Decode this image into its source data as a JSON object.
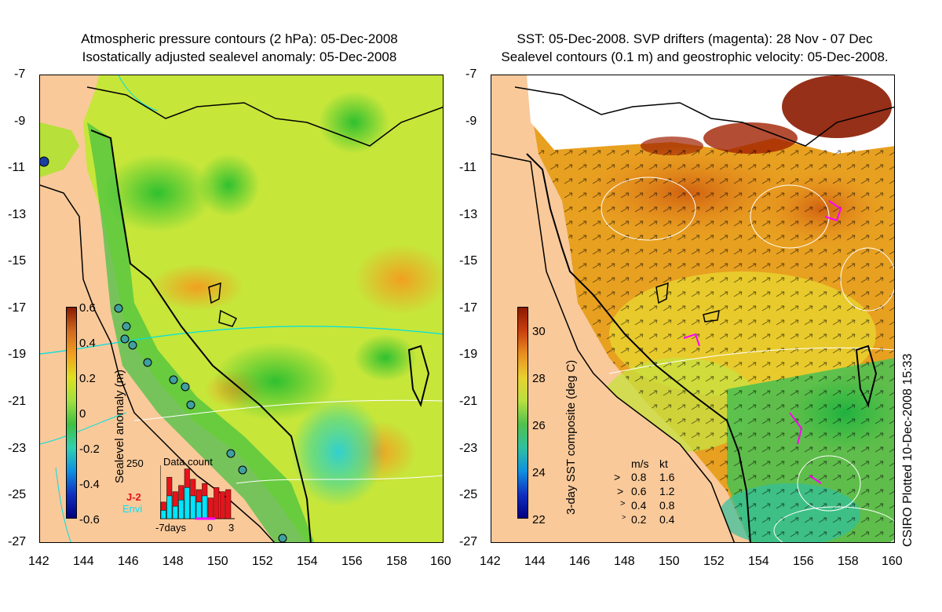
{
  "left_panel": {
    "title_line1": "Atmospheric pressure contours (2 hPa): 05-Dec-2008",
    "title_line2": "Isostatically adjusted sealevel anomaly: 05-Dec-2008",
    "y_ticks": [
      "-7",
      "-9",
      "-11",
      "-13",
      "-15",
      "-17",
      "-19",
      "-21",
      "-23",
      "-25",
      "-27"
    ],
    "x_ticks": [
      "142",
      "144",
      "146",
      "148",
      "150",
      "152",
      "154",
      "156",
      "158",
      "160"
    ],
    "colorbar": {
      "label": "Sealevel anomaly (m)",
      "ticks": [
        "0.6",
        "0.4",
        "0.2",
        "0",
        "-0.2",
        "-0.4",
        "-0.6"
      ],
      "range": [
        -0.6,
        0.6
      ]
    },
    "data_count_inset": {
      "title": "Data count",
      "max_label": "250",
      "x_labels": [
        "-7days",
        "0",
        "3"
      ],
      "series": [
        {
          "name": "J-2",
          "color": "#e8121a",
          "values": [
            80,
            200,
            130,
            160,
            240,
            190,
            140,
            170,
            100,
            150,
            130,
            140
          ]
        },
        {
          "name": "Envi",
          "color": "#00e5ff",
          "values": [
            40,
            110,
            60,
            90,
            150,
            110,
            80,
            110,
            0,
            0,
            0,
            0
          ]
        }
      ]
    }
  },
  "right_panel": {
    "title_line1": "SST: 05-Dec-2008. SVP drifters (magenta): 28 Nov - 07 Dec",
    "title_line2": "Sealevel contours (0.1 m) and geostrophic velocity: 05-Dec-2008.",
    "y_ticks": [
      "-7",
      "-9",
      "-11",
      "-13",
      "-15",
      "-17",
      "-19",
      "-21",
      "-23",
      "-25",
      "-27"
    ],
    "x_ticks": [
      "142",
      "144",
      "146",
      "148",
      "150",
      "152",
      "154",
      "156",
      "158",
      "160"
    ],
    "colorbar": {
      "label": "3-day SST composite (deg C)",
      "ticks": [
        "30",
        "28",
        "26",
        "24",
        "22"
      ],
      "range": [
        22,
        31
      ]
    },
    "velocity_legend": {
      "header_ms": "m/s",
      "header_kt": "kt",
      "rows": [
        {
          "ms": "0.8",
          "kt": "1.6"
        },
        {
          "ms": "0.6",
          "kt": "1.2"
        },
        {
          "ms": "0.4",
          "kt": "0.8"
        },
        {
          "ms": "0.2",
          "kt": "0.4"
        }
      ]
    }
  },
  "credit": "CSIRO Plotted 10-Dec-2008 15:33",
  "colors": {
    "land": "#f9c99a",
    "coast": "#000000",
    "pressure_contour": "#00e0e0",
    "drifter": "#ff00ff"
  }
}
